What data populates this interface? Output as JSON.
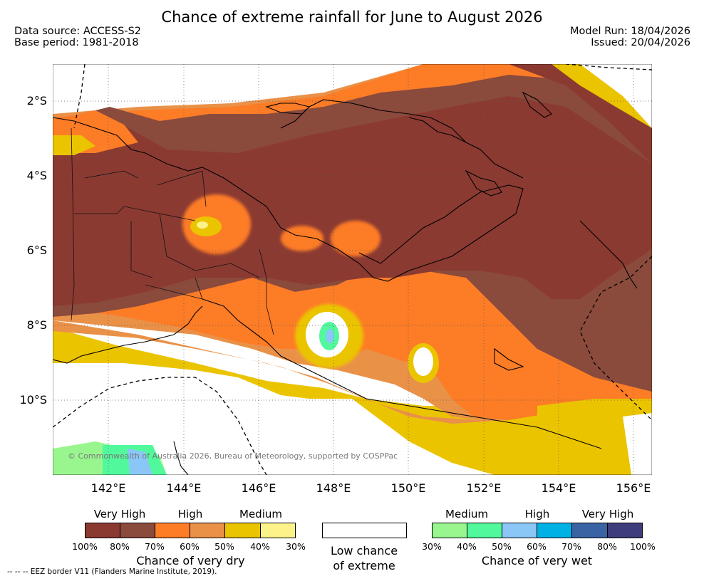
{
  "title": "Chance of extreme rainfall for June to August 2026",
  "meta": {
    "data_source": "Data source: ACCESS-S2",
    "base_period": "Base period: 1981-2018",
    "model_run": "Model Run: 18/04/2026",
    "issued": "Issued: 20/04/2026"
  },
  "axes": {
    "lat_labels": [
      "2°S",
      "4°S",
      "6°S",
      "8°S",
      "10°S"
    ],
    "lon_labels": [
      "142°E",
      "144°E",
      "146°E",
      "148°E",
      "150°E",
      "152°E",
      "154°E",
      "156°E"
    ]
  },
  "copyright": "© Commonwealth of Australia 2026, Bureau of Meteorology, supported by COSPPac",
  "legend": {
    "dry": {
      "levels": [
        "Very High",
        "High",
        "Medium"
      ],
      "colors": [
        "#8b3a32",
        "#8a4a3c",
        "#fd7c26",
        "#ea9148",
        "#ebc400",
        "#fbf28a"
      ],
      "percents": [
        "100%",
        "80%",
        "70%",
        "60%",
        "50%",
        "40%",
        "30%"
      ],
      "caption": "Chance of very dry"
    },
    "low": {
      "color": "#ffffff",
      "line1": "Low chance",
      "line2": "of extreme"
    },
    "wet": {
      "levels": [
        "Medium",
        "High",
        "Very High"
      ],
      "colors": [
        "#99f68f",
        "#52f89c",
        "#8ac7f7",
        "#00b1e6",
        "#3a63a3",
        "#3e3c7b"
      ],
      "percents": [
        "30%",
        "40%",
        "50%",
        "60%",
        "70%",
        "80%",
        "100%"
      ],
      "caption": "Chance of very wet"
    }
  },
  "footnote": "--  --  -- EEZ border V11 (Flanders Marine Institute, 2019)."
}
